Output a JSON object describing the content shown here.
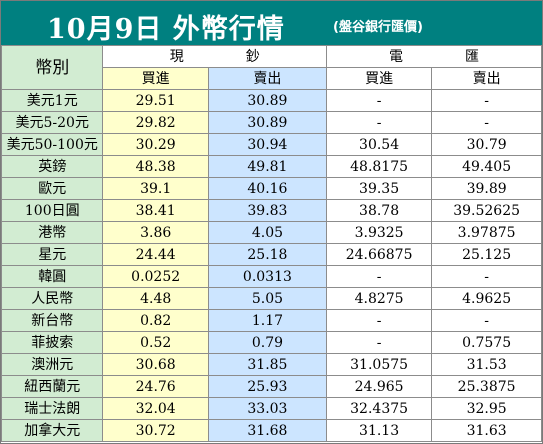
{
  "title": "10月9日 外幣行情",
  "subtitle": "(盤谷銀行匯價)",
  "header": {
    "currency_label": "幣別",
    "cash_group": "現鈔",
    "wire_group": "電匯",
    "buy": "買進",
    "sell": "賣出"
  },
  "rows": [
    {
      "name": "美元1元",
      "cash_buy": "29.51",
      "cash_sell": "30.89",
      "wire_buy": "-",
      "wire_sell": "-"
    },
    {
      "name": "美元5-20元",
      "cash_buy": "29.82",
      "cash_sell": "30.89",
      "wire_buy": "-",
      "wire_sell": "-"
    },
    {
      "name": "美元50-100元",
      "cash_buy": "30.29",
      "cash_sell": "30.94",
      "wire_buy": "30.54",
      "wire_sell": "30.79"
    },
    {
      "name": "英鎊",
      "cash_buy": "48.38",
      "cash_sell": "49.81",
      "wire_buy": "48.8175",
      "wire_sell": "49.405"
    },
    {
      "name": "歐元",
      "cash_buy": "39.1",
      "cash_sell": "40.16",
      "wire_buy": "39.35",
      "wire_sell": "39.89"
    },
    {
      "name": "100日圓",
      "cash_buy": "38.41",
      "cash_sell": "39.83",
      "wire_buy": "38.78",
      "wire_sell": "39.52625"
    },
    {
      "name": "港幣",
      "cash_buy": "3.86",
      "cash_sell": "4.05",
      "wire_buy": "3.9325",
      "wire_sell": "3.97875"
    },
    {
      "name": "星元",
      "cash_buy": "24.44",
      "cash_sell": "25.18",
      "wire_buy": "24.66875",
      "wire_sell": "25.125"
    },
    {
      "name": "韓圓",
      "cash_buy": "0.0252",
      "cash_sell": "0.0313",
      "wire_buy": "-",
      "wire_sell": "-"
    },
    {
      "name": "人民幣",
      "cash_buy": "4.48",
      "cash_sell": "5.05",
      "wire_buy": "4.8275",
      "wire_sell": "4.9625"
    },
    {
      "name": "新台幣",
      "cash_buy": "0.82",
      "cash_sell": "1.17",
      "wire_buy": "-",
      "wire_sell": "-"
    },
    {
      "name": "菲披索",
      "cash_buy": "0.52",
      "cash_sell": "0.79",
      "wire_buy": "-",
      "wire_sell": "0.7575"
    },
    {
      "name": "澳洲元",
      "cash_buy": "30.68",
      "cash_sell": "31.85",
      "wire_buy": "31.0575",
      "wire_sell": "31.53"
    },
    {
      "name": "紐西蘭元",
      "cash_buy": "24.76",
      "cash_sell": "25.93",
      "wire_buy": "24.965",
      "wire_sell": "25.3875"
    },
    {
      "name": "瑞士法朗",
      "cash_buy": "32.04",
      "cash_sell": "33.03",
      "wire_buy": "32.4375",
      "wire_sell": "32.95"
    },
    {
      "name": "加拿大元",
      "cash_buy": "30.72",
      "cash_sell": "31.68",
      "wire_buy": "31.13",
      "wire_sell": "31.63"
    }
  ],
  "colors": {
    "title_bg": "#008080",
    "label_bg": "#d2ecd2",
    "cash_buy_bg": "#ffffcc",
    "cash_sell_bg": "#cce5ff",
    "wire_bg": "#ffffff"
  }
}
